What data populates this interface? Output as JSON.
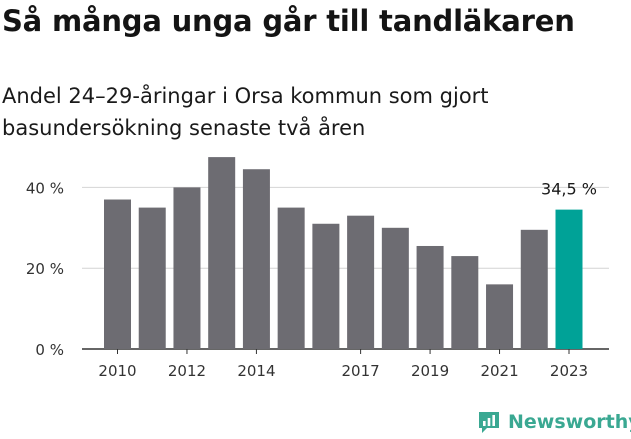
{
  "chart_data": {
    "type": "bar",
    "title": "Så många unga går till tandläkaren",
    "subtitle": "Andel 24–29-åringar i Orsa kommun som gjort basundersökning senaste två åren",
    "categories": [
      "2010",
      "2011",
      "2012",
      "2013",
      "2014",
      "2015",
      "2016",
      "2017",
      "2018",
      "2019",
      "2020",
      "2021",
      "2022",
      "2023"
    ],
    "values": [
      37,
      35,
      40,
      47.5,
      44.5,
      35,
      31,
      33,
      30,
      25.5,
      23,
      16,
      29.5,
      34.5
    ],
    "x_tick_labels": [
      "2010",
      "2012",
      "2014",
      "2017",
      "2019",
      "2021",
      "2023"
    ],
    "y_ticks": [
      0,
      20,
      40
    ],
    "y_tick_labels": [
      "0 %",
      "20 %",
      "40 %"
    ],
    "ylim": [
      0,
      50
    ],
    "grid": true,
    "highlight_index": 13,
    "highlight_label": "34,5 %",
    "colors": {
      "bar": "#6d6c72",
      "highlight": "#00a297",
      "grid": "#d4d4d4",
      "axis": "#333333"
    }
  },
  "brand": {
    "name": "Newsworthy",
    "icon": "newsworthy-logo-icon",
    "color": "#3aa892"
  }
}
